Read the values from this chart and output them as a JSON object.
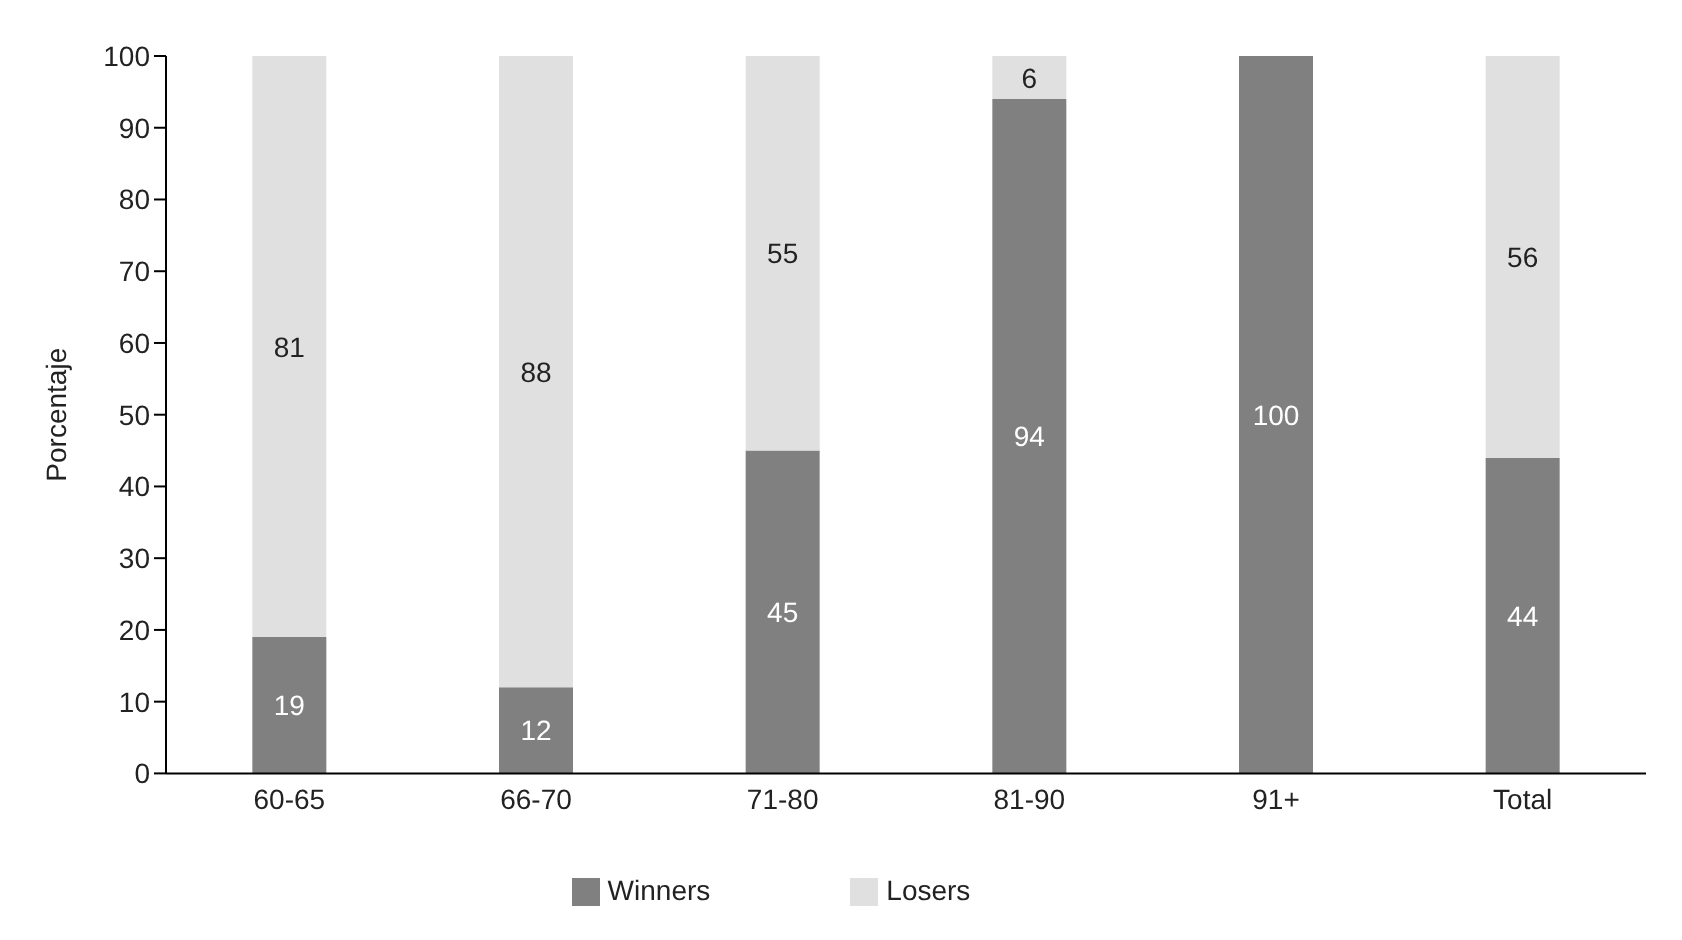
{
  "chart_data": {
    "type": "bar",
    "stacked": true,
    "ylabel": "Porcentaje",
    "categories": [
      "60-65",
      "66-70",
      "71-80",
      "81-90",
      "91+",
      "Total"
    ],
    "series": [
      {
        "name": "Winners",
        "color": "#808080",
        "values": [
          19,
          12,
          45,
          94,
          100,
          44
        ],
        "value_labels": [
          "19",
          "12",
          "45",
          "94",
          "100",
          "44"
        ]
      },
      {
        "name": "Losers",
        "color": "#e0e0e0",
        "values": [
          81,
          88,
          55,
          6,
          0,
          56
        ],
        "value_labels": [
          "81",
          "88",
          "55",
          "6",
          null,
          "56"
        ]
      }
    ],
    "ylim": [
      0,
      100
    ],
    "yticks": [
      0,
      10,
      20,
      30,
      40,
      50,
      60,
      70,
      80,
      90,
      100
    ],
    "grid": false,
    "legend": "bottom"
  }
}
